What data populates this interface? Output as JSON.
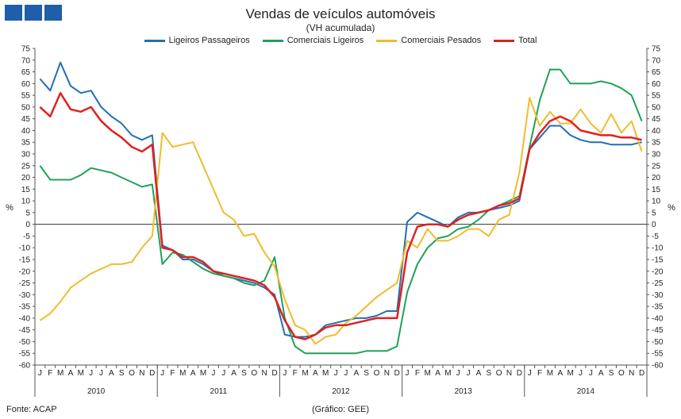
{
  "chart_data": {
    "type": "line",
    "title": "Vendas de veículos automóveis",
    "subtitle": "(VH acumulada)",
    "ylabel": "%",
    "ylim": [
      -60,
      75
    ],
    "yticks": [
      75,
      70,
      65,
      60,
      55,
      50,
      45,
      40,
      35,
      30,
      25,
      20,
      15,
      10,
      5,
      0,
      -5,
      -10,
      -15,
      -20,
      -25,
      -30,
      -35,
      -40,
      -45,
      -50,
      -55,
      -60
    ],
    "months": [
      "J",
      "F",
      "M",
      "A",
      "M",
      "J",
      "J",
      "A",
      "S",
      "O",
      "N",
      "D"
    ],
    "years": [
      "2010",
      "2011",
      "2012",
      "2013",
      "2014"
    ],
    "legend_position": "top",
    "grid": false,
    "series": [
      {
        "name": "Ligeiros Passageiros",
        "color": "#1f6fb5",
        "values": [
          62,
          57,
          69,
          59,
          56,
          57,
          50,
          46,
          43,
          38,
          36,
          38,
          -9,
          -11,
          -15,
          -15,
          -17,
          -20,
          -22,
          -23,
          -24,
          -25,
          -27,
          -30,
          -47,
          -48,
          -48,
          -47,
          -43,
          -42,
          -41,
          -40,
          -40,
          -39,
          -37,
          -37,
          1,
          5,
          3,
          1,
          -1,
          3,
          5,
          5,
          6,
          7,
          8,
          10,
          32,
          37,
          42,
          42,
          38,
          36,
          35,
          35,
          34,
          34,
          34,
          35
        ]
      },
      {
        "name": "Comerciais Ligeiros",
        "color": "#21a05a",
        "values": [
          25,
          19,
          19,
          19,
          21,
          24,
          23,
          22,
          20,
          18,
          16,
          17,
          -17,
          -12,
          -13,
          -16,
          -19,
          -21,
          -22,
          -23,
          -25,
          -26,
          -24,
          -14,
          -40,
          -52,
          -55,
          -55,
          -55,
          -55,
          -55,
          -55,
          -54,
          -54,
          -54,
          -52,
          -29,
          -17,
          -10,
          -6,
          -5,
          -2,
          -1,
          2,
          6,
          8,
          10,
          12,
          33,
          53,
          66,
          66,
          60,
          60,
          60,
          61,
          60,
          58,
          55,
          44
        ]
      },
      {
        "name": "Comerciais Pesados",
        "color": "#f0bc2d",
        "values": [
          -41,
          -38,
          -33,
          -27,
          -24,
          -21,
          -19,
          -17,
          -17,
          -16,
          -10,
          -5,
          39,
          33,
          34,
          35,
          25,
          15,
          5,
          2,
          -5,
          -4,
          -12,
          -18,
          -32,
          -43,
          -45,
          -51,
          -48,
          -47,
          -42,
          -39,
          -35,
          -31,
          -28,
          -25,
          -7,
          -10,
          -2,
          -7,
          -7,
          -5,
          -2,
          -2,
          -5,
          2,
          4,
          22,
          54,
          42,
          48,
          43,
          43,
          49,
          43,
          39,
          47,
          39,
          44,
          31
        ]
      },
      {
        "name": "Total",
        "color": "#e02020",
        "values": [
          50,
          46,
          56,
          49,
          48,
          50,
          44,
          40,
          37,
          33,
          31,
          34,
          -10,
          -11,
          -14,
          -14,
          -16,
          -20,
          -21,
          -22,
          -23,
          -24,
          -26,
          -31,
          -41,
          -48,
          -49,
          -47,
          -44,
          -43,
          -43,
          -42,
          -41,
          -40,
          -40,
          -40,
          -12,
          -1,
          0,
          0,
          -1,
          2,
          4,
          5,
          6,
          8,
          9,
          11,
          32,
          39,
          44,
          46,
          44,
          40,
          39,
          38,
          38,
          37,
          37,
          36
        ]
      }
    ]
  },
  "footer": {
    "source": "Fonte: ACAP",
    "credit": "(Gráfico: GEE)"
  }
}
